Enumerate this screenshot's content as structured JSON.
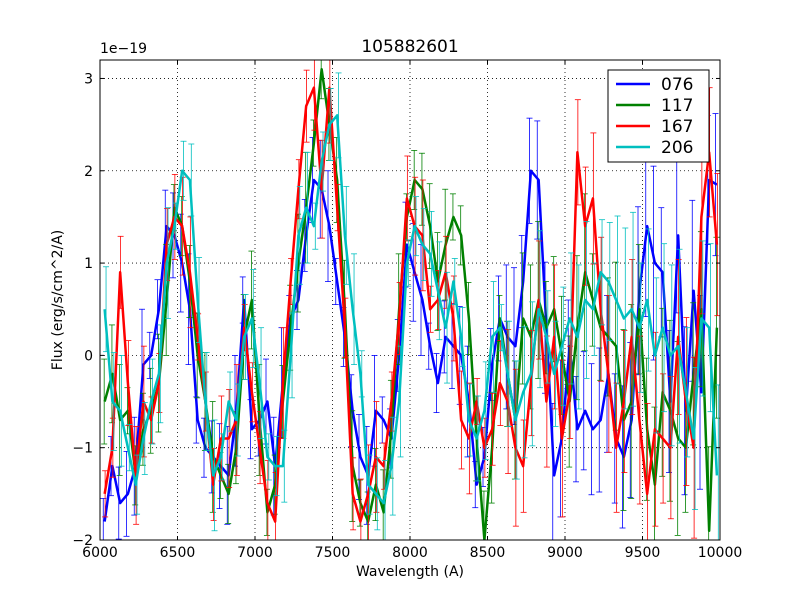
{
  "chart_data": {
    "type": "line",
    "title": "105882601",
    "xlabel": "Wavelength (A)",
    "ylabel": "Flux (erg/s/cm^2/A)",
    "y_offset_label": "1e−19",
    "xlim": [
      6000,
      10000
    ],
    "ylim": [
      -2,
      3.2
    ],
    "xticks": [
      6000,
      6500,
      7000,
      7500,
      8000,
      8500,
      9000,
      9500,
      10000
    ],
    "xtick_labels": [
      "6000",
      "6500",
      "7000",
      "7500",
      "8000",
      "8500",
      "9000",
      "9500",
      "10000"
    ],
    "yticks": [
      -2,
      -1,
      0,
      1,
      2,
      3
    ],
    "ytick_labels": [
      "−2",
      "−1",
      "0",
      "1",
      "2",
      "3"
    ],
    "grid": true,
    "legend_position": "top-right",
    "series": [
      {
        "name": "076",
        "color": "#0000ff",
        "x": [
          6030,
          6080,
          6130,
          6180,
          6230,
          6280,
          6330,
          6380,
          6430,
          6480,
          6530,
          6580,
          6630,
          6680,
          6730,
          6780,
          6830,
          6880,
          6930,
          6980,
          7030,
          7080,
          7130,
          7180,
          7230,
          7280,
          7330,
          7380,
          7430,
          7480,
          7530,
          7580,
          7630,
          7680,
          7730,
          7780,
          7830,
          7880,
          7930,
          7980,
          8030,
          8080,
          8130,
          8180,
          8230,
          8280,
          8330,
          8380,
          8430,
          8480,
          8530,
          8580,
          8630,
          8680,
          8730,
          8780,
          8830,
          8880,
          8930,
          8980,
          9030,
          9080,
          9130,
          9180,
          9230,
          9280,
          9330,
          9380,
          9430,
          9480,
          9530,
          9580,
          9630,
          9680,
          9730,
          9780,
          9830,
          9880,
          9930,
          9980
        ],
        "y": [
          -1.8,
          -1.2,
          -1.6,
          -1.5,
          -1.2,
          -0.1,
          0.0,
          0.5,
          1.4,
          1.3,
          1.0,
          0.5,
          -0.7,
          -1.0,
          -1.1,
          -1.2,
          -1.3,
          -0.6,
          0.6,
          -0.8,
          -0.7,
          -0.5,
          -1.2,
          -0.3,
          0.4,
          0.6,
          1.3,
          1.9,
          1.8,
          1.4,
          0.8,
          0.2,
          -0.6,
          -1.1,
          -1.3,
          -0.6,
          -0.7,
          -0.9,
          0.0,
          1.2,
          0.9,
          0.6,
          0.1,
          -0.3,
          0.2,
          0.1,
          0.0,
          -0.5,
          -1.4,
          -1.1,
          -0.1,
          0.4,
          0.2,
          0.1,
          0.8,
          2.0,
          1.9,
          0.3,
          -1.3,
          -0.9,
          0.1,
          -0.8,
          -0.6,
          -0.8,
          -0.7,
          -0.2,
          -0.9,
          -1.1,
          -0.7,
          0.7,
          1.4,
          1.0,
          0.9,
          -0.5,
          1.3,
          -0.6,
          0.7,
          -0.4,
          1.9,
          1.85
        ]
      },
      {
        "name": "117",
        "color": "#008000",
        "x": [
          6030,
          6080,
          6130,
          6180,
          6230,
          6280,
          6330,
          6380,
          6430,
          6480,
          6530,
          6580,
          6630,
          6680,
          6730,
          6780,
          6830,
          6880,
          6930,
          6980,
          7030,
          7080,
          7130,
          7180,
          7230,
          7280,
          7330,
          7380,
          7430,
          7480,
          7530,
          7580,
          7630,
          7680,
          7730,
          7780,
          7830,
          7880,
          7930,
          7980,
          8030,
          8080,
          8130,
          8180,
          8230,
          8280,
          8330,
          8380,
          8430,
          8480,
          8530,
          8580,
          8630,
          8680,
          8730,
          8780,
          8830,
          8880,
          8930,
          8980,
          9030,
          9080,
          9130,
          9180,
          9230,
          9280,
          9330,
          9380,
          9430,
          9480,
          9530,
          9580,
          9630,
          9680,
          9730,
          9780,
          9830,
          9880,
          9930,
          9980
        ],
        "y": [
          -0.5,
          -0.2,
          -0.7,
          -0.6,
          -1.3,
          -0.8,
          -0.6,
          -0.3,
          0.6,
          1.6,
          1.4,
          0.8,
          0.0,
          -0.5,
          -1.1,
          -1.3,
          -1.5,
          -1.0,
          0.2,
          0.6,
          -0.7,
          -1.7,
          -1.4,
          -0.5,
          0.3,
          1.0,
          1.6,
          2.3,
          3.1,
          2.5,
          1.9,
          0.5,
          -1.2,
          -1.6,
          -1.8,
          -1.4,
          -1.7,
          -0.8,
          0.5,
          1.5,
          1.9,
          1.8,
          1.4,
          0.8,
          1.2,
          1.5,
          1.3,
          0.4,
          -0.9,
          -2.0,
          -1.0,
          0.4,
          -0.2,
          -0.7,
          0.4,
          0.2,
          0.6,
          0.3,
          0.5,
          0.0,
          -0.5,
          0.3,
          0.9,
          0.6,
          0.3,
          0.2,
          0.1,
          -0.7,
          -0.5,
          0.5,
          -0.8,
          -1.4,
          -0.4,
          -0.6,
          -0.9,
          -1.0,
          -0.2,
          0.5,
          -1.9,
          0.3
        ]
      },
      {
        "name": "167",
        "color": "#ff0000",
        "x": [
          6030,
          6080,
          6130,
          6180,
          6230,
          6280,
          6330,
          6380,
          6430,
          6480,
          6530,
          6580,
          6630,
          6680,
          6730,
          6780,
          6830,
          6880,
          6930,
          6980,
          7030,
          7080,
          7130,
          7180,
          7230,
          7280,
          7330,
          7380,
          7430,
          7480,
          7530,
          7580,
          7630,
          7680,
          7730,
          7780,
          7830,
          7880,
          7930,
          7980,
          8030,
          8080,
          8130,
          8180,
          8230,
          8280,
          8330,
          8380,
          8430,
          8480,
          8530,
          8580,
          8630,
          8680,
          8730,
          8780,
          8830,
          8880,
          8930,
          8980,
          9030,
          9080,
          9130,
          9180,
          9230,
          9280,
          9330,
          9380,
          9430,
          9480,
          9530,
          9580,
          9630,
          9680,
          9730,
          9780,
          9830,
          9880,
          9930,
          9980
        ],
        "y": [
          -1.5,
          -1.0,
          0.9,
          -0.3,
          -1.3,
          -0.5,
          -0.7,
          -0.3,
          1.2,
          1.5,
          1.4,
          0.9,
          0.2,
          -0.5,
          -1.4,
          -0.9,
          -0.9,
          -0.7,
          0.3,
          -0.4,
          -1.0,
          -1.6,
          -1.8,
          -0.3,
          0.8,
          1.8,
          2.7,
          2.9,
          1.8,
          2.9,
          1.6,
          0.3,
          -1.5,
          -1.8,
          -1.5,
          -1.1,
          -1.2,
          -0.5,
          0.4,
          1.7,
          1.4,
          1.3,
          0.5,
          0.6,
          0.9,
          0.4,
          -0.7,
          -0.9,
          -0.5,
          -1.0,
          -0.8,
          -0.3,
          -0.5,
          -1.0,
          -1.2,
          -0.3,
          0.6,
          -0.5,
          0.2,
          -0.9,
          -0.4,
          2.2,
          1.4,
          1.7,
          0.5,
          -0.2,
          -1.0,
          -0.5,
          0.2,
          -0.7,
          -1.5,
          -0.8,
          -0.9,
          -1.0,
          0.2,
          -0.5,
          -1.0,
          1.5,
          2.2,
          1.2
        ]
      },
      {
        "name": "206",
        "color": "#00bfbf",
        "x": [
          6030,
          6080,
          6130,
          6180,
          6230,
          6280,
          6330,
          6380,
          6430,
          6480,
          6530,
          6580,
          6630,
          6680,
          6730,
          6780,
          6830,
          6880,
          6930,
          6980,
          7030,
          7080,
          7130,
          7180,
          7230,
          7280,
          7330,
          7380,
          7430,
          7480,
          7530,
          7580,
          7630,
          7680,
          7730,
          7780,
          7830,
          7880,
          7930,
          7980,
          8030,
          8080,
          8130,
          8180,
          8230,
          8280,
          8330,
          8380,
          8430,
          8480,
          8530,
          8580,
          8630,
          8680,
          8730,
          8780,
          8830,
          8880,
          8930,
          8980,
          9030,
          9080,
          9130,
          9180,
          9230,
          9280,
          9330,
          9380,
          9430,
          9480,
          9530,
          9580,
          9630,
          9680,
          9730,
          9780,
          9830,
          9880,
          9930,
          9980
        ],
        "y": [
          0.5,
          -0.5,
          -0.6,
          -1.0,
          -1.4,
          -0.9,
          -0.5,
          -0.2,
          1.0,
          1.4,
          2.0,
          1.9,
          0.6,
          -0.5,
          -1.3,
          -1.1,
          -0.5,
          -0.7,
          0.2,
          0.4,
          -0.3,
          -1.1,
          -1.2,
          -1.2,
          0.0,
          1.3,
          1.6,
          1.4,
          2.1,
          2.5,
          2.6,
          1.3,
          0.5,
          -0.2,
          -1.4,
          -1.5,
          -1.6,
          -1.2,
          -0.5,
          1.0,
          1.4,
          1.2,
          1.1,
          0.7,
          0.3,
          0.8,
          0.2,
          -0.7,
          -0.9,
          -0.6,
          0.2,
          0.3,
          -0.2,
          -0.7,
          -0.4,
          -0.2,
          0.5,
          0.2,
          -0.2,
          0.1,
          0.4,
          0.2,
          0.6,
          0.5,
          0.9,
          0.8,
          0.6,
          0.4,
          0.5,
          0.3,
          0.6,
          0.0,
          0.3,
          0.0,
          0.1,
          -0.4,
          -0.9,
          0.4,
          0.3,
          -1.3
        ]
      }
    ]
  }
}
